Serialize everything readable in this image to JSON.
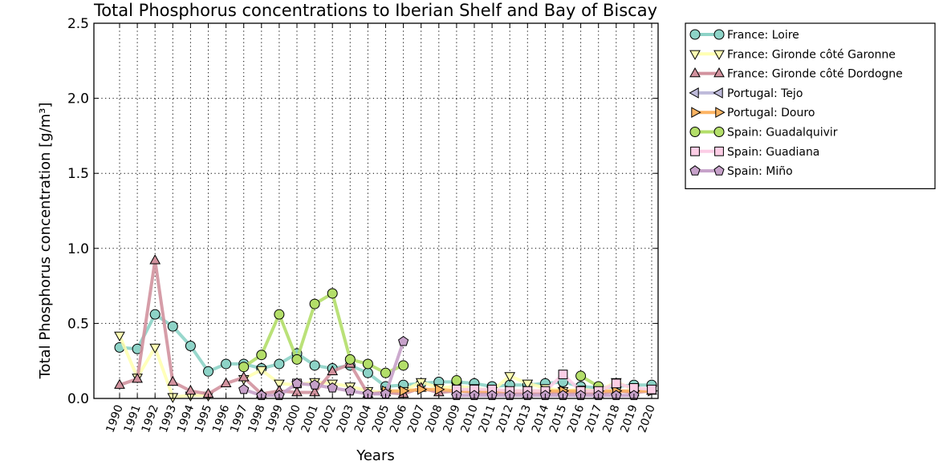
{
  "chart_data": {
    "type": "line",
    "title": "Total Phosphorus concentrations to Iberian Shelf and Bay of Biscay",
    "xlabel": "Years",
    "ylabel": "Total Phosphorus concentration [g/m³]",
    "ylim": [
      0,
      2.5
    ],
    "yticks": [
      "0.0",
      "0.5",
      "1.0",
      "1.5",
      "2.0",
      "2.5"
    ],
    "grid": true,
    "legend_position": "outside-right-top",
    "categories": [
      "1990",
      "1991",
      "1992",
      "1993",
      "1994",
      "1995",
      "1996",
      "1997",
      "1998",
      "1999",
      "2000",
      "2001",
      "2002",
      "2003",
      "2004",
      "2005",
      "2006",
      "2007",
      "2008",
      "2009",
      "2010",
      "2011",
      "2012",
      "2013",
      "2014",
      "2015",
      "2016",
      "2017",
      "2018",
      "2019",
      "2020"
    ],
    "series": [
      {
        "name": "France: Loire",
        "color": "#8dd3c7",
        "marker": "circle",
        "values": [
          0.34,
          0.33,
          0.56,
          0.48,
          0.35,
          0.18,
          0.23,
          0.23,
          0.2,
          0.23,
          0.3,
          0.22,
          0.2,
          0.22,
          0.17,
          0.08,
          0.09,
          0.1,
          0.11,
          0.11,
          0.1,
          0.08,
          0.09,
          0.09,
          0.1,
          0.11,
          0.08,
          0.07,
          0.08,
          0.09,
          0.09
        ]
      },
      {
        "name": "France: Gironde côté Garonne",
        "color": "#ffffb3",
        "marker": "triangle-down",
        "values": [
          0.42,
          0.14,
          0.34,
          0.01,
          0.02,
          0.02,
          null,
          0.13,
          0.19,
          0.1,
          0.09,
          0.11,
          0.1,
          0.08,
          0.05,
          0.04,
          0.05,
          0.11,
          0.07,
          0.08,
          0.07,
          0.05,
          0.15,
          0.1,
          0.07,
          0.05,
          0.06,
          0.05,
          0.11,
          0.06,
          0.06
        ]
      },
      {
        "name": "France: Gironde côté Dordogne",
        "color": "#d2929e",
        "marker": "triangle-up",
        "values": [
          0.09,
          0.13,
          0.92,
          0.11,
          0.05,
          0.03,
          0.1,
          0.14,
          0.03,
          0.05,
          0.04,
          0.04,
          0.18,
          0.23,
          0.03,
          0.04,
          0.03,
          0.07,
          0.04,
          0.05,
          0.04,
          0.04,
          0.04,
          0.03,
          0.04,
          0.04,
          0.04,
          0.03,
          0.05,
          0.04,
          0.05
        ]
      },
      {
        "name": "Portugal: Tejo",
        "color": "#bebada",
        "marker": "triangle-left",
        "values": [
          null,
          null,
          null,
          null,
          null,
          null,
          null,
          null,
          null,
          null,
          null,
          null,
          null,
          null,
          null,
          null,
          null,
          null,
          null,
          null,
          null,
          null,
          null,
          null,
          null,
          null,
          null,
          null,
          null,
          null,
          null
        ]
      },
      {
        "name": "Portugal: Douro",
        "color": "#fdb462",
        "marker": "triangle-right",
        "values": [
          null,
          null,
          null,
          null,
          null,
          null,
          null,
          null,
          null,
          null,
          null,
          null,
          null,
          null,
          null,
          0.05,
          0.05,
          0.06,
          0.06,
          0.05,
          0.05,
          0.05,
          0.05,
          0.05,
          0.05,
          0.05,
          0.05,
          0.05,
          0.05,
          0.05,
          0.05
        ]
      },
      {
        "name": "Spain: Guadalquivir",
        "color": "#b3de69",
        "marker": "circle",
        "values": [
          null,
          null,
          null,
          null,
          null,
          null,
          null,
          0.21,
          0.29,
          0.56,
          0.26,
          0.63,
          0.7,
          0.26,
          0.23,
          0.17,
          0.22,
          null,
          null,
          0.12,
          null,
          null,
          null,
          null,
          null,
          null,
          0.15,
          0.08,
          null,
          null,
          null
        ]
      },
      {
        "name": "Spain: Guadiana",
        "color": "#fccde5",
        "marker": "square",
        "values": [
          null,
          null,
          null,
          null,
          null,
          null,
          null,
          null,
          null,
          null,
          0.1,
          null,
          null,
          null,
          null,
          null,
          null,
          null,
          null,
          0.06,
          0.06,
          0.06,
          0.05,
          0.05,
          0.05,
          0.16,
          0.05,
          0.05,
          0.1,
          0.07,
          0.06
        ]
      },
      {
        "name": "Spain: Miño",
        "color": "#c6a1c9",
        "marker": "pentagon",
        "values": [
          null,
          null,
          null,
          null,
          null,
          null,
          null,
          0.06,
          0.02,
          0.02,
          0.1,
          0.09,
          0.07,
          0.05,
          0.03,
          0.03,
          0.38,
          null,
          null,
          0.02,
          0.02,
          0.02,
          0.02,
          0.02,
          0.02,
          0.02,
          0.02,
          0.02,
          0.02,
          0.02,
          null
        ]
      }
    ]
  }
}
